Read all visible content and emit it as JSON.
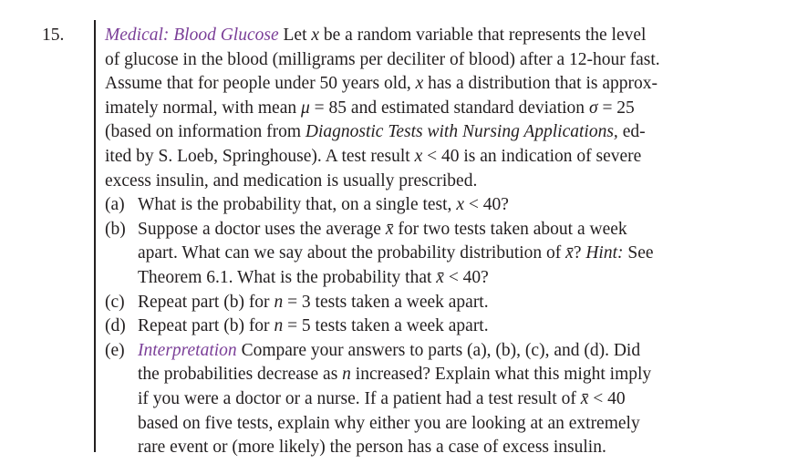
{
  "number": "15.",
  "title": "Medical: Blood Glucose",
  "intro": [
    [
      " Let ",
      "x",
      " be a random variable that represents the level"
    ],
    [
      "of glucose in the blood (milligrams per deciliter of blood) after a 12-hour fast."
    ],
    [
      "Assume that for people under 50 years old, ",
      "x",
      " has a distribution that is approx-"
    ],
    [
      "imately normal, with mean ",
      "μ",
      " = 85 and estimated standard deviation ",
      "σ",
      " = 25"
    ],
    [
      "(based on information from ",
      "Diagnostic Tests with Nursing Applications,",
      " ed-"
    ],
    [
      "ited by S. Loeb, Springhouse). A test result ",
      "x",
      " < 40 is an indication of severe"
    ],
    [
      "excess insulin, and medication is usually prescribed."
    ]
  ],
  "parts": [
    {
      "label": "(a)",
      "lines": [
        [
          "What is the probability that, on a single test, ",
          "x",
          " < 40?"
        ]
      ]
    },
    {
      "label": "(b)",
      "lines": [
        [
          "Suppose a doctor uses the average ",
          "x̄",
          " for two tests taken about a week"
        ],
        [
          "apart. What can we say about the probability distribution of ",
          "x̄",
          "? ",
          "Hint:",
          " See"
        ],
        [
          "Theorem 6.1. What is the probability that ",
          "x̄",
          " < 40?"
        ]
      ]
    },
    {
      "label": "(c)",
      "lines": [
        [
          "Repeat part (b) for ",
          "n",
          " = 3 tests taken a week apart."
        ]
      ]
    },
    {
      "label": "(d)",
      "lines": [
        [
          "Repeat part (b) for ",
          "n",
          " = 5 tests taken a week apart."
        ]
      ]
    },
    {
      "label": "(e)",
      "title": "Interpretation",
      "lines": [
        [
          " Compare your answers to parts (a), (b), (c), and (d). Did"
        ],
        [
          "the probabilities decrease as ",
          "n",
          " increased? Explain what this might imply"
        ],
        [
          "if you were a doctor or a nurse. If a patient had a test result of ",
          "x̄",
          " < 40"
        ],
        [
          "based on five tests, explain why either you are looking at an extremely"
        ],
        [
          "rare event or (more likely) the person has a case of excess insulin."
        ]
      ]
    }
  ]
}
